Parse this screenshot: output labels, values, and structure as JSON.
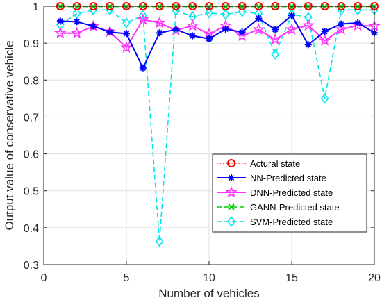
{
  "chart_data": {
    "type": "line",
    "title": "",
    "xlabel": "Number of vehicles",
    "ylabel": "Output value of conservative vehicle",
    "xlim": [
      0,
      20
    ],
    "ylim": [
      0.3,
      1
    ],
    "xticks": [
      0,
      5,
      10,
      15,
      20
    ],
    "yticks": [
      0.3,
      0.4,
      0.5,
      0.6,
      0.7,
      0.8,
      0.9,
      1
    ],
    "xtick_labels": [
      "0",
      "5",
      "10",
      "15",
      "20"
    ],
    "ytick_labels": [
      "0.3",
      "0.4",
      "0.5",
      "0.6",
      "0.7",
      "0.8",
      "0.9",
      "1"
    ],
    "grid": true,
    "legend_position": "bottom-right",
    "x": [
      1,
      2,
      3,
      4,
      5,
      6,
      7,
      8,
      9,
      10,
      11,
      12,
      13,
      14,
      15,
      16,
      17,
      18,
      19,
      20
    ],
    "series": [
      {
        "name": "Actural state",
        "color": "#ff0000",
        "line": "dotted",
        "marker": "circle",
        "values": [
          1,
          1,
          1,
          1,
          1,
          1,
          1,
          1,
          1,
          1,
          1,
          1,
          1,
          1,
          1,
          1,
          1,
          1,
          1,
          1
        ]
      },
      {
        "name": "NN-Predicted state",
        "color": "#0000ff",
        "line": "solid",
        "marker": "asterisk",
        "values": [
          0.96,
          0.958,
          0.946,
          0.93,
          0.926,
          0.833,
          0.928,
          0.937,
          0.92,
          0.912,
          0.938,
          0.93,
          0.967,
          0.937,
          0.975,
          0.896,
          0.932,
          0.952,
          0.955,
          0.928
        ]
      },
      {
        "name": "DNN-Predicted state",
        "color": "#ff33ff",
        "line": "solid",
        "marker": "star",
        "values": [
          0.927,
          0.927,
          0.946,
          0.931,
          0.888,
          0.964,
          0.955,
          0.935,
          0.947,
          0.925,
          0.947,
          0.92,
          0.937,
          0.91,
          0.937,
          0.948,
          0.907,
          0.937,
          0.948,
          0.946
        ]
      },
      {
        "name": "GANN-Predicted state",
        "color": "#00cc00",
        "line": "dashed",
        "marker": "x",
        "values": [
          0.999,
          0.999,
          0.999,
          0.999,
          0.999,
          0.999,
          0.999,
          0.999,
          0.999,
          0.999,
          0.999,
          0.999,
          0.999,
          0.999,
          0.999,
          0.999,
          0.999,
          0.999,
          0.999,
          0.999
        ]
      },
      {
        "name": "SVM-Predicted state",
        "color": "#00e5ee",
        "line": "dashed",
        "marker": "diamond",
        "values": [
          0.95,
          0.98,
          0.99,
          0.99,
          0.955,
          0.975,
          0.363,
          0.988,
          0.972,
          0.982,
          0.978,
          0.985,
          0.98,
          0.87,
          0.978,
          0.97,
          0.75,
          0.99,
          0.99,
          0.99
        ]
      }
    ]
  }
}
